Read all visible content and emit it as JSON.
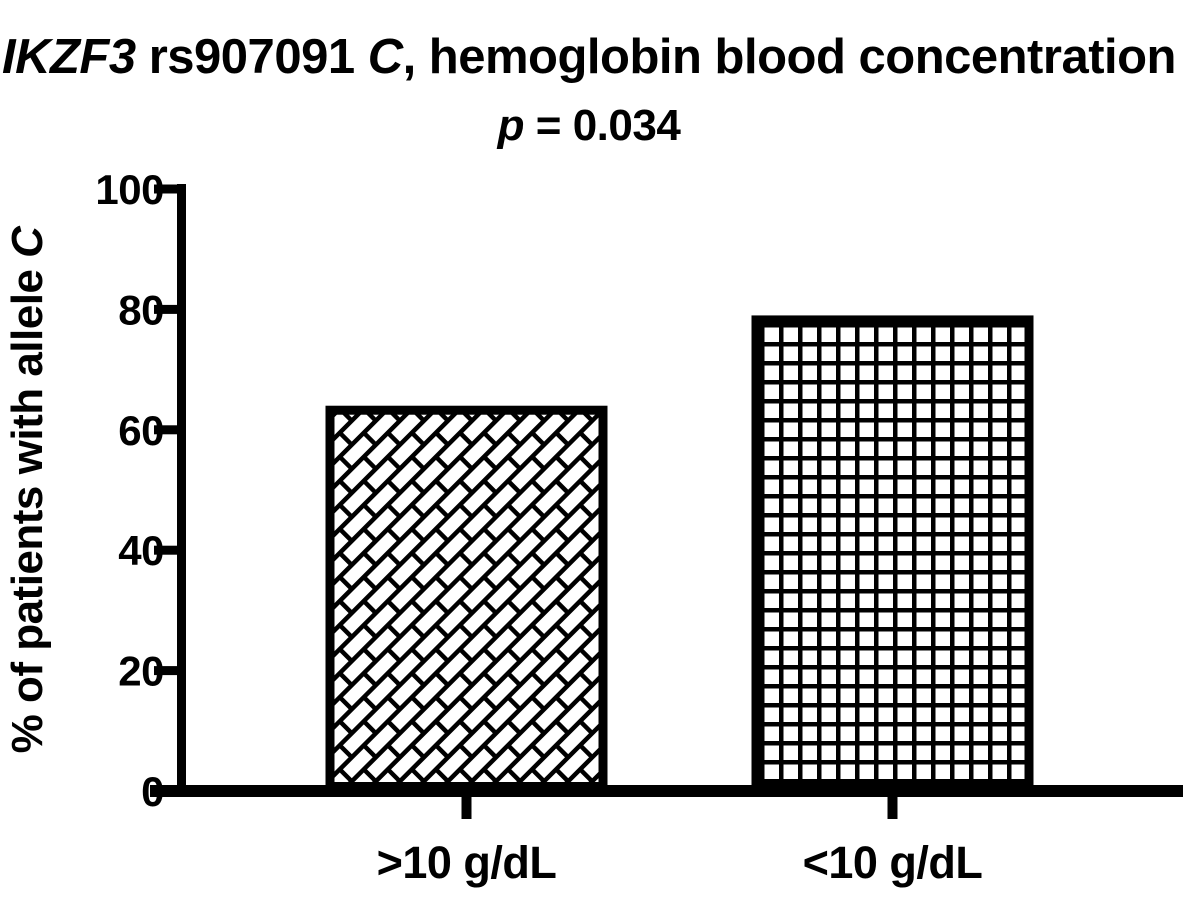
{
  "title": {
    "gene_italic": "IKZF3",
    "mid": " rs907091 ",
    "allele_italic": "C",
    "rest": ", hemoglobin blood concentration"
  },
  "subtitle": {
    "p_italic": "p",
    "rest": " = 0.034"
  },
  "ylabel": {
    "main": "% of patients with allele ",
    "allele_italic": "C"
  },
  "colors": {
    "ink": "#000000",
    "background": "#ffffff"
  },
  "chart_data": {
    "type": "bar",
    "title": "IKZF3 rs907091 C, hemoglobin blood concentration",
    "subtitle": "p = 0.034",
    "categories": [
      ">10 g/dL",
      "<10 g/dL"
    ],
    "values": [
      64,
      79
    ],
    "xlabel": "",
    "ylabel": "% of patients with allele C",
    "ylim": [
      0,
      100
    ],
    "yticks": [
      0,
      20,
      40,
      60,
      80,
      100
    ],
    "grid": false,
    "legend_position": "none",
    "bar_fill": "#ffffff",
    "bar_stroke": "#000000",
    "bar_patterns": [
      "diagonal-basketweave",
      "square-grid"
    ]
  }
}
